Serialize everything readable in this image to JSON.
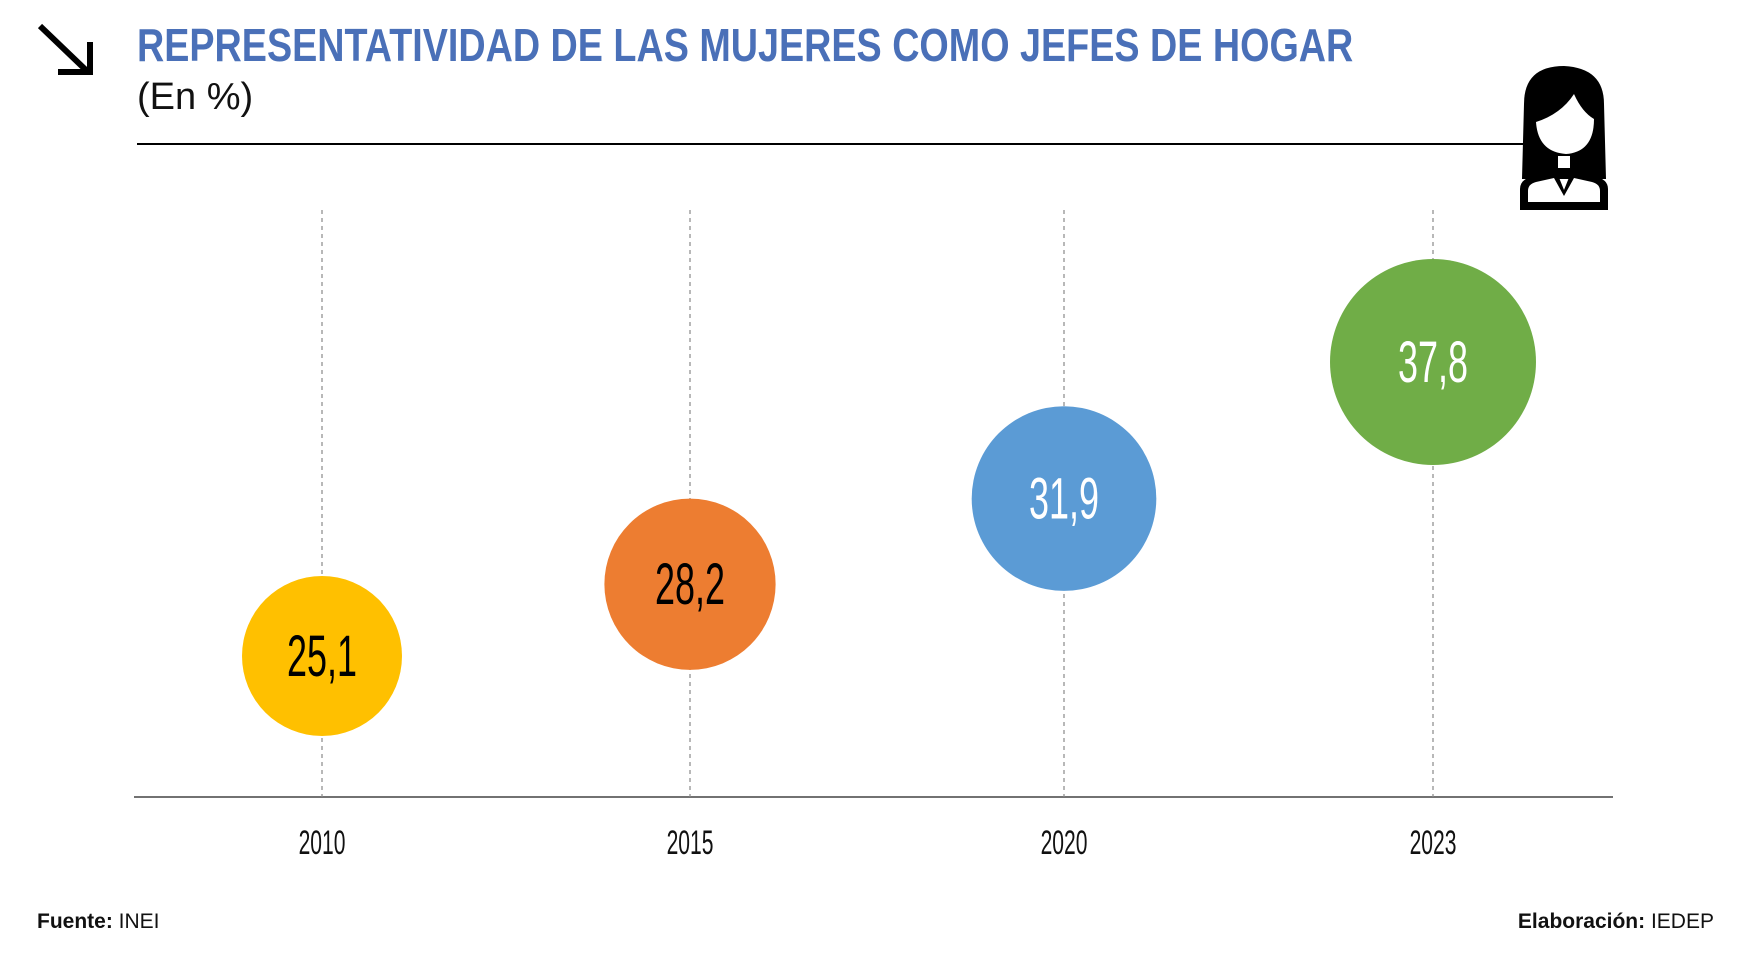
{
  "header": {
    "title": "REPRESENTATIVIDAD DE LAS MUJERES COMO JEFES DE HOGAR",
    "subtitle": "(En %)"
  },
  "icons": {
    "arrow": "arrow-down-right-icon",
    "person": "woman-icon"
  },
  "chart_data": {
    "type": "scatter",
    "title": "REPRESENTATIVIDAD DE LAS MUJERES COMO JEFES DE HOGAR",
    "ylabel": "%",
    "categories": [
      "2010",
      "2015",
      "2020",
      "2023"
    ],
    "values": [
      25.1,
      28.2,
      31.9,
      37.8
    ],
    "labels": [
      "25,1",
      "28,2",
      "31,9",
      "37,8"
    ],
    "colors": [
      "#ffc000",
      "#ed7d31",
      "#5b9bd5",
      "#70ad47"
    ],
    "label_colors": [
      "#000000",
      "#000000",
      "#ffffff",
      "#ffffff"
    ],
    "grid": true
  },
  "footer": {
    "source_label": "Fuente:",
    "source": "INEI",
    "credit_label": "Elaboración:",
    "credit": "IEDEP"
  }
}
